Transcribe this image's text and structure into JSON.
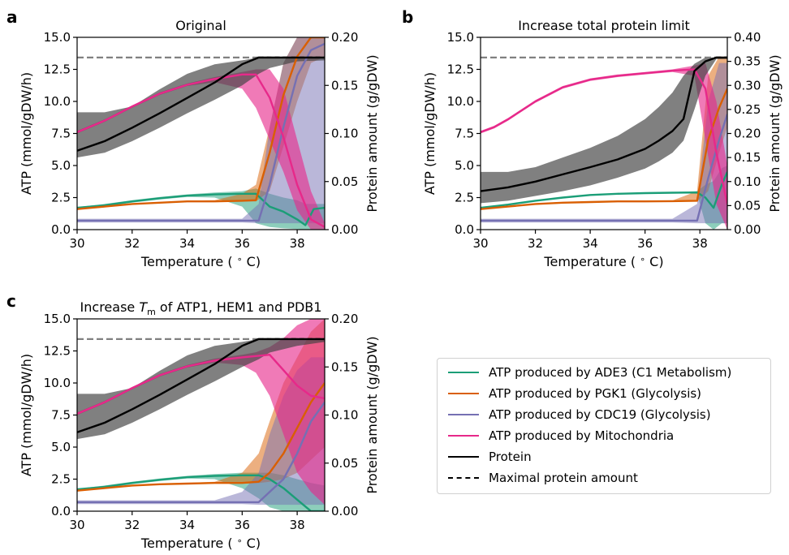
{
  "figure": {
    "colors": {
      "ade3": "#1b9e77",
      "pgk1": "#d95f02",
      "cdc19": "#7570b3",
      "mito": "#e7298a",
      "protein": "#000000",
      "maxline": "#808080"
    },
    "legend": [
      {
        "key": "ade3",
        "label": "ATP produced by ADE3 (C1 Metabolism)",
        "style": "solid"
      },
      {
        "key": "pgk1",
        "label": "ATP produced by PGK1 (Glycolysis)",
        "style": "solid"
      },
      {
        "key": "cdc19",
        "label": "ATP produced by CDC19 (Glycolysis)",
        "style": "solid"
      },
      {
        "key": "mito",
        "label": "ATP produced by Mitochondria",
        "style": "solid"
      },
      {
        "key": "protein",
        "label": "Protein",
        "style": "solid"
      },
      {
        "key": "maxline",
        "label": "Maximal protein amount",
        "style": "dashed"
      }
    ]
  },
  "chart_data": [
    {
      "type": "line",
      "panel": "a",
      "title": "Original",
      "xlabel": "Temperature ($^\\circ$C)",
      "ylabel": "ATP (mmol/gDW/h)",
      "ylabel_right": "Protein amount (g/gDW)",
      "xlim": [
        30,
        39
      ],
      "ylim": [
        0,
        15
      ],
      "ylim_right": [
        0,
        0.2
      ],
      "xticks": [
        "30",
        "32",
        "34",
        "36",
        "38"
      ],
      "yticks": [
        "0.0",
        "2.5",
        "5.0",
        "7.5",
        "10.0",
        "12.5",
        "15.0"
      ],
      "yticks_right": [
        "0.00",
        "0.05",
        "0.10",
        "0.15",
        "0.20"
      ],
      "max_protein": 0.179,
      "series": [
        {
          "key": "ade3",
          "x": [
            30,
            31,
            32,
            33,
            34,
            35,
            36,
            36.5,
            37,
            37.5,
            38,
            38.3,
            38.6,
            39
          ],
          "y": [
            1.7,
            1.9,
            2.2,
            2.45,
            2.65,
            2.75,
            2.8,
            2.8,
            1.8,
            1.4,
            0.8,
            0.35,
            1.6,
            1.7
          ],
          "band_lo": [
            1.65,
            1.8,
            2.1,
            2.35,
            2.55,
            2.5,
            1.8,
            0.5,
            0.2,
            0.1,
            0.05,
            0.0,
            0.0,
            0.0
          ],
          "band_hi": [
            1.75,
            2.0,
            2.3,
            2.55,
            2.75,
            2.9,
            3.0,
            3.2,
            2.8,
            2.5,
            2.3,
            2.0,
            2.0,
            2.0
          ]
        },
        {
          "key": "pgk1",
          "x": [
            30,
            31,
            32,
            33,
            34,
            35,
            36,
            36.5,
            37,
            37.5,
            38,
            38.5,
            39
          ],
          "y": [
            1.6,
            1.8,
            2.0,
            2.1,
            2.2,
            2.2,
            2.25,
            2.3,
            6.0,
            10.5,
            13.5,
            15.0,
            15.0
          ],
          "band_lo": [
            1.55,
            1.75,
            1.95,
            2.05,
            2.15,
            2.15,
            2.2,
            2.2,
            3.0,
            6.5,
            10.0,
            13.0,
            13.5
          ],
          "band_hi": [
            1.65,
            1.85,
            2.05,
            2.15,
            2.25,
            2.3,
            2.8,
            3.5,
            8.0,
            13.0,
            15.0,
            15.0,
            15.0
          ]
        },
        {
          "key": "cdc19",
          "x": [
            30,
            31,
            32,
            33,
            34,
            35,
            36,
            36.6,
            37,
            37.5,
            38,
            38.5,
            39
          ],
          "y": [
            0.7,
            0.7,
            0.7,
            0.7,
            0.7,
            0.7,
            0.7,
            0.7,
            3.5,
            8.0,
            12.0,
            14.0,
            14.5
          ],
          "band_lo": [
            0.55,
            0.55,
            0.55,
            0.55,
            0.55,
            0.55,
            0.55,
            0.5,
            0.5,
            0.5,
            0.5,
            0.5,
            0.5
          ],
          "band_hi": [
            0.85,
            0.85,
            0.85,
            0.85,
            0.85,
            0.85,
            0.85,
            2.0,
            8.0,
            13.0,
            15.0,
            15.0,
            15.0
          ]
        },
        {
          "key": "mito",
          "x": [
            30,
            31,
            32,
            33,
            34,
            35,
            36,
            36.5,
            37,
            37.5,
            38,
            38.5,
            39
          ],
          "y": [
            7.6,
            8.5,
            9.6,
            10.6,
            11.3,
            11.75,
            12.1,
            12.1,
            10.3,
            7.2,
            3.5,
            0.8,
            0.2
          ],
          "band_lo": [
            7.5,
            8.4,
            9.5,
            10.5,
            11.2,
            11.5,
            11.0,
            9.5,
            7.0,
            4.5,
            1.5,
            0.0,
            0.0
          ],
          "band_hi": [
            7.7,
            8.6,
            9.7,
            10.7,
            11.4,
            11.9,
            12.3,
            12.5,
            12.5,
            11.0,
            7.0,
            3.0,
            0.5
          ]
        },
        {
          "key": "protein",
          "axis": "right",
          "x": [
            30,
            31,
            32,
            33,
            34,
            35,
            36,
            36.6,
            37,
            38,
            39
          ],
          "y": [
            0.082,
            0.092,
            0.106,
            0.121,
            0.137,
            0.153,
            0.172,
            0.179,
            0.179,
            0.179,
            0.179
          ],
          "band_lo": [
            0.075,
            0.08,
            0.092,
            0.106,
            0.121,
            0.135,
            0.15,
            0.162,
            0.168,
            0.175,
            0.176
          ],
          "band_hi": [
            0.122,
            0.122,
            0.128,
            0.146,
            0.162,
            0.172,
            0.176,
            0.179,
            0.179,
            0.179,
            0.179
          ]
        }
      ]
    },
    {
      "type": "line",
      "panel": "b",
      "title": "Increase total protein limit",
      "xlabel": "Temperature ($^\\circ$C)",
      "ylabel": "ATP (mmol/gDW/h)",
      "ylabel_right": "Protein amount (g/gDW)",
      "xlim": [
        30,
        39
      ],
      "ylim": [
        0,
        15
      ],
      "ylim_right": [
        0,
        0.4
      ],
      "xticks": [
        "30",
        "32",
        "34",
        "36",
        "38"
      ],
      "yticks": [
        "0.0",
        "2.5",
        "5.0",
        "7.5",
        "10.0",
        "12.5",
        "15.0"
      ],
      "yticks_right": [
        "0.00",
        "0.05",
        "0.10",
        "0.15",
        "0.20",
        "0.25",
        "0.30",
        "0.35",
        "0.40"
      ],
      "max_protein": 0.358,
      "series": [
        {
          "key": "ade3",
          "x": [
            30,
            31,
            32,
            33,
            34,
            35,
            36,
            37,
            37.9,
            38.2,
            38.5,
            38.8,
            39
          ],
          "y": [
            1.7,
            1.95,
            2.25,
            2.5,
            2.7,
            2.8,
            2.85,
            2.88,
            2.9,
            2.5,
            1.7,
            3.5,
            4.5
          ],
          "band_lo": [
            1.65,
            1.9,
            2.2,
            2.45,
            2.65,
            2.75,
            2.8,
            2.83,
            2.8,
            0.5,
            0.0,
            0.5,
            0.5
          ],
          "band_hi": [
            1.75,
            2.0,
            2.3,
            2.55,
            2.75,
            2.85,
            2.9,
            2.93,
            3.0,
            3.5,
            3.8,
            4.8,
            5.0
          ]
        },
        {
          "key": "pgk1",
          "x": [
            30,
            31,
            32,
            33,
            34,
            35,
            36,
            37,
            37.9,
            38.3,
            38.7,
            39
          ],
          "y": [
            1.6,
            1.8,
            2.0,
            2.1,
            2.15,
            2.2,
            2.2,
            2.22,
            2.25,
            7.0,
            9.5,
            11.0
          ],
          "band_lo": [
            1.55,
            1.75,
            1.95,
            2.05,
            2.1,
            2.15,
            2.15,
            2.17,
            2.2,
            3.0,
            6.0,
            8.0
          ],
          "band_hi": [
            1.65,
            1.85,
            2.05,
            2.15,
            2.2,
            2.25,
            2.25,
            2.27,
            3.0,
            12.0,
            13.5,
            13.5
          ]
        },
        {
          "key": "cdc19",
          "x": [
            30,
            31,
            32,
            33,
            34,
            35,
            36,
            37,
            37.9,
            38.3,
            38.7,
            39
          ],
          "y": [
            0.7,
            0.7,
            0.7,
            0.7,
            0.7,
            0.7,
            0.7,
            0.7,
            0.7,
            4.0,
            7.0,
            9.0
          ],
          "band_lo": [
            0.55,
            0.55,
            0.55,
            0.55,
            0.55,
            0.55,
            0.55,
            0.55,
            0.5,
            0.5,
            0.5,
            0.5
          ],
          "band_hi": [
            0.85,
            0.85,
            0.85,
            0.85,
            0.85,
            0.85,
            0.85,
            0.85,
            2.0,
            10.0,
            13.0,
            13.0
          ]
        },
        {
          "key": "mito",
          "x": [
            30,
            30.5,
            31,
            32,
            33,
            34,
            35,
            36,
            37,
            37.8,
            38.2,
            38.6,
            39
          ],
          "y": [
            7.6,
            8.0,
            8.6,
            10.0,
            11.1,
            11.7,
            12.0,
            12.2,
            12.4,
            12.5,
            11.0,
            6.0,
            2.0
          ],
          "band_lo": [
            7.5,
            7.9,
            8.5,
            9.9,
            11.0,
            11.6,
            11.9,
            12.1,
            12.3,
            12.0,
            7.0,
            2.0,
            0.0
          ],
          "band_hi": [
            7.7,
            8.1,
            8.7,
            10.1,
            11.2,
            11.8,
            12.1,
            12.3,
            12.5,
            12.8,
            13.0,
            10.0,
            5.0
          ]
        },
        {
          "key": "protein",
          "axis": "right",
          "x": [
            30,
            31,
            32,
            33,
            34,
            35,
            36,
            36.5,
            37,
            37.4,
            37.8,
            38.2,
            38.6,
            39
          ],
          "y": [
            0.08,
            0.088,
            0.1,
            0.115,
            0.13,
            0.146,
            0.168,
            0.185,
            0.205,
            0.23,
            0.33,
            0.35,
            0.358,
            0.358
          ],
          "band_lo": [
            0.055,
            0.06,
            0.07,
            0.08,
            0.092,
            0.108,
            0.127,
            0.142,
            0.16,
            0.185,
            0.25,
            0.32,
            0.355,
            0.355
          ],
          "band_hi": [
            0.12,
            0.12,
            0.13,
            0.15,
            0.17,
            0.195,
            0.23,
            0.255,
            0.285,
            0.32,
            0.345,
            0.358,
            0.358,
            0.358
          ]
        }
      ]
    },
    {
      "type": "line",
      "panel": "c",
      "title": "Increase T_m of ATP1, HEM1 and PDB1",
      "title_parts": [
        "Increase ",
        "T",
        "m",
        " of ATP1, HEM1 and PDB1"
      ],
      "xlabel": "Temperature ($^\\circ$C)",
      "ylabel": "ATP (mmol/gDW/h)",
      "ylabel_right": "Protein amount (g/gDW)",
      "xlim": [
        30,
        39
      ],
      "ylim": [
        0,
        15
      ],
      "ylim_right": [
        0,
        0.2
      ],
      "xticks": [
        "30",
        "32",
        "34",
        "36",
        "38"
      ],
      "yticks": [
        "0.0",
        "2.5",
        "5.0",
        "7.5",
        "10.0",
        "12.5",
        "15.0"
      ],
      "yticks_right": [
        "0.00",
        "0.05",
        "0.10",
        "0.15",
        "0.20"
      ],
      "max_protein": 0.179,
      "series": [
        {
          "key": "ade3",
          "x": [
            30,
            31,
            32,
            33,
            34,
            35,
            36,
            36.6,
            37,
            37.5,
            38,
            38.5,
            39
          ],
          "y": [
            1.7,
            1.9,
            2.2,
            2.45,
            2.65,
            2.75,
            2.8,
            2.8,
            2.5,
            1.8,
            0.9,
            0.0,
            0.0
          ],
          "band_lo": [
            1.65,
            1.8,
            2.1,
            2.35,
            2.55,
            2.5,
            1.8,
            1.0,
            0.3,
            0.0,
            0.0,
            0.0,
            0.0
          ],
          "band_hi": [
            1.75,
            2.0,
            2.3,
            2.55,
            2.75,
            2.9,
            3.0,
            3.0,
            3.0,
            2.8,
            2.5,
            2.2,
            2.0
          ]
        },
        {
          "key": "pgk1",
          "x": [
            30,
            31,
            32,
            33,
            34,
            35,
            36,
            36.6,
            37,
            37.5,
            38,
            38.5,
            39
          ],
          "y": [
            1.6,
            1.8,
            2.0,
            2.1,
            2.15,
            2.2,
            2.2,
            2.3,
            3.0,
            4.5,
            6.5,
            8.5,
            10.0
          ],
          "band_lo": [
            1.55,
            1.75,
            1.95,
            2.05,
            2.1,
            2.15,
            2.15,
            2.2,
            2.3,
            2.5,
            3.0,
            4.0,
            5.0
          ],
          "band_hi": [
            1.65,
            1.85,
            2.05,
            2.15,
            2.2,
            2.3,
            3.0,
            4.5,
            7.0,
            10.0,
            12.0,
            14.0,
            15.0
          ]
        },
        {
          "key": "cdc19",
          "x": [
            30,
            31,
            32,
            33,
            34,
            35,
            36,
            36.6,
            37,
            37.5,
            38,
            38.5,
            39
          ],
          "y": [
            0.7,
            0.7,
            0.7,
            0.7,
            0.7,
            0.7,
            0.7,
            0.7,
            1.5,
            2.5,
            4.5,
            7.0,
            8.5
          ],
          "band_lo": [
            0.55,
            0.55,
            0.55,
            0.55,
            0.55,
            0.55,
            0.55,
            0.5,
            0.5,
            0.5,
            0.5,
            0.5,
            0.5
          ],
          "band_hi": [
            0.85,
            0.85,
            0.85,
            0.85,
            0.85,
            0.85,
            1.5,
            3.0,
            6.0,
            9.0,
            11.0,
            12.0,
            12.0
          ]
        },
        {
          "key": "mito",
          "x": [
            30,
            31,
            32,
            33,
            34,
            35,
            36,
            36.5,
            37,
            37.5,
            38,
            38.5,
            39
          ],
          "y": [
            7.6,
            8.5,
            9.6,
            10.6,
            11.3,
            11.75,
            12.0,
            12.1,
            12.2,
            11.0,
            9.8,
            9.0,
            8.8
          ],
          "band_lo": [
            7.5,
            8.4,
            9.5,
            10.5,
            11.2,
            11.6,
            11.4,
            10.8,
            9.0,
            6.0,
            3.0,
            1.5,
            0.5
          ],
          "band_hi": [
            7.7,
            8.6,
            9.7,
            10.7,
            11.4,
            11.9,
            12.2,
            12.4,
            12.8,
            13.5,
            14.5,
            15.0,
            15.0
          ]
        },
        {
          "key": "protein",
          "axis": "right",
          "x": [
            30,
            31,
            32,
            33,
            34,
            35,
            36,
            36.6,
            37,
            38,
            39
          ],
          "y": [
            0.082,
            0.092,
            0.106,
            0.121,
            0.137,
            0.153,
            0.172,
            0.179,
            0.179,
            0.179,
            0.179
          ],
          "band_lo": [
            0.075,
            0.08,
            0.092,
            0.106,
            0.121,
            0.135,
            0.15,
            0.158,
            0.165,
            0.172,
            0.176
          ],
          "band_hi": [
            0.122,
            0.122,
            0.128,
            0.146,
            0.162,
            0.172,
            0.176,
            0.179,
            0.179,
            0.179,
            0.179
          ]
        }
      ]
    }
  ]
}
